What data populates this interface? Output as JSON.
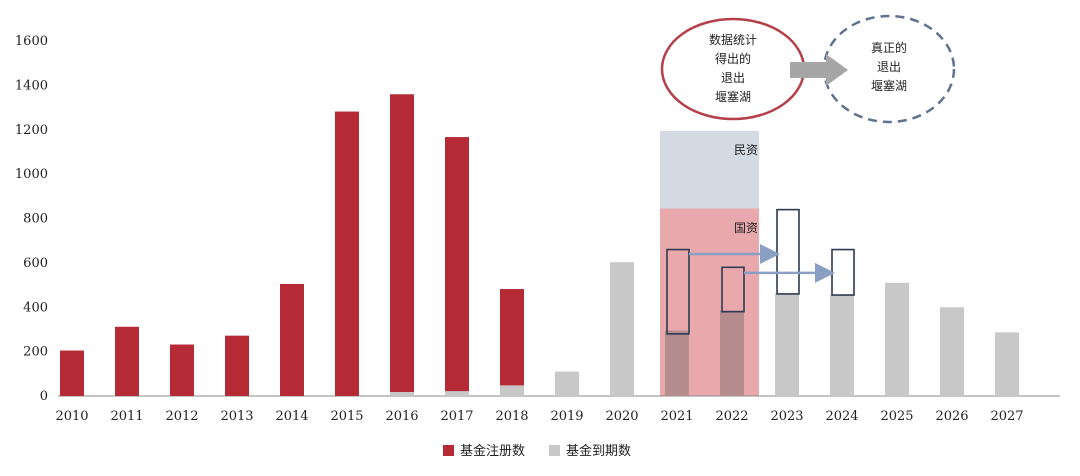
{
  "chart_data": {
    "type": "bar",
    "title": "",
    "xlabel": "",
    "ylabel": "",
    "ylim": [
      0,
      1600
    ],
    "yticks": [
      0,
      200,
      400,
      600,
      800,
      1000,
      1200,
      1400,
      1600
    ],
    "categories": [
      "2010",
      "2011",
      "2012",
      "2013",
      "2014",
      "2015",
      "2016",
      "2017",
      "2018",
      "2019",
      "2020",
      "2021",
      "2022",
      "2023",
      "2024",
      "2025",
      "2026",
      "2027"
    ],
    "series": [
      {
        "name": "基金注册数",
        "color": "#b52a35",
        "values": [
          205,
          312,
          232,
          272,
          505,
          1282,
          1360,
          1167,
          482,
          42,
          null,
          null,
          null,
          null,
          null,
          null,
          null,
          null
        ]
      },
      {
        "name": "基金到期数",
        "color": "#c8c8c8",
        "values": [
          null,
          null,
          null,
          null,
          null,
          null,
          18,
          22,
          48,
          110,
          603,
          295,
          385,
          462,
          458,
          510,
          400,
          287
        ]
      }
    ],
    "legend_position": "bottom-center",
    "grid": false,
    "shaded_regions": [
      {
        "label": "国资",
        "categories": [
          "2021",
          "2022"
        ],
        "from": 0,
        "to": 845,
        "color": "#e59a9e"
      },
      {
        "label": "民资",
        "categories": [
          "2021",
          "2022"
        ],
        "from": 845,
        "to": 1195,
        "color": "#cdd3de"
      }
    ],
    "range_boxes": [
      {
        "category": "2021",
        "from": 280,
        "to": 660
      },
      {
        "category": "2022",
        "from": 380,
        "to": 580
      },
      {
        "category": "2023",
        "from": 460,
        "to": 840
      },
      {
        "category": "2024",
        "from": 455,
        "to": 660
      }
    ],
    "shift_arrows": [
      {
        "from": "2021",
        "to": "2023",
        "y": 640
      },
      {
        "from": "2022",
        "to": "2024",
        "y": 555
      }
    ],
    "callouts": {
      "left": {
        "lines": [
          "数据统计",
          "得出的",
          "退出",
          "堰塞湖"
        ],
        "border": "#b5404a"
      },
      "right": {
        "lines": [
          "真正的",
          "退出",
          "堰塞湖"
        ],
        "border": "#5f7390"
      },
      "arrow_color": "#a6a6a6"
    }
  }
}
